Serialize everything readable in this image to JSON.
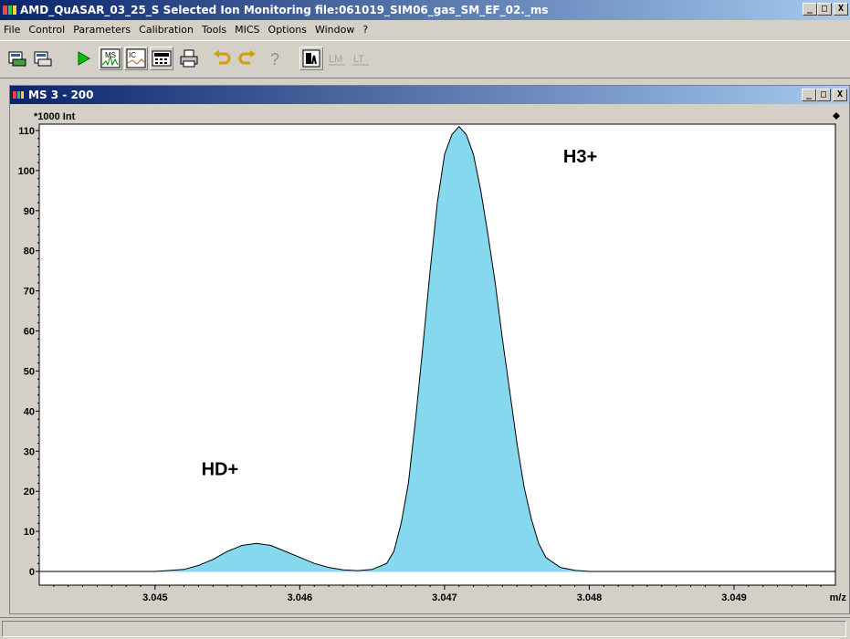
{
  "app": {
    "title": "AMD_QuASAR_03_25_S  Selected Ion Monitoring  file:061019_SIM06_gas_SM_EF_02._ms"
  },
  "window_buttons": {
    "minimize": "_",
    "maximize": "□",
    "close": "X"
  },
  "menu": [
    "File",
    "Control",
    "Parameters",
    "Calibration",
    "Tools",
    "MICS",
    "Options",
    "Window",
    "?"
  ],
  "toolbar": {
    "icons": [
      "open-file-icon",
      "save-file-icon",
      "run-icon",
      "ms-spectrum-icon",
      "ion-chromatogram-icon",
      "calculator-icon",
      "print-icon",
      "undo-icon",
      "redo-icon",
      "help-icon",
      "zoom-icon",
      "lm-icon",
      "lt-icon"
    ],
    "ms_label": "MS",
    "ic_label": "IC",
    "lm_label": "LM",
    "lt_label": "LT"
  },
  "child_window": {
    "title": "MS  3 - 200"
  },
  "chart_data": {
    "type": "area",
    "ylabel": "*1000 Int",
    "xlabel": "m/z",
    "xlim": [
      3.0442,
      3.0497
    ],
    "ylim": [
      0,
      110
    ],
    "x_ticks": [
      "3.045",
      "3.046",
      "3.047",
      "3.048",
      "3.049"
    ],
    "y_ticks": [
      "0",
      "10",
      "20",
      "30",
      "40",
      "50",
      "60",
      "70",
      "80",
      "90",
      "100",
      "110"
    ],
    "x": [
      3.0442,
      3.045,
      3.0452,
      3.0453,
      3.0454,
      3.0455,
      3.0456,
      3.0457,
      3.0458,
      3.0459,
      3.046,
      3.0461,
      3.0462,
      3.0463,
      3.0464,
      3.0465,
      3.0466,
      3.04665,
      3.0467,
      3.04675,
      3.0468,
      3.04685,
      3.0469,
      3.04695,
      3.047,
      3.04705,
      3.0471,
      3.04715,
      3.0472,
      3.04725,
      3.0473,
      3.04735,
      3.0474,
      3.04745,
      3.0475,
      3.04755,
      3.0476,
      3.04765,
      3.0477,
      3.0478,
      3.0479,
      3.048,
      3.0497
    ],
    "y": [
      0,
      0,
      0.5,
      1.5,
      3.0,
      5.0,
      6.5,
      7.0,
      6.5,
      5.0,
      3.5,
      2.0,
      1.0,
      0.4,
      0.2,
      0.5,
      2.0,
      5.0,
      12.0,
      22.0,
      38.0,
      56.0,
      75.0,
      92.0,
      104.0,
      109.0,
      111.0,
      109.0,
      104.0,
      95.0,
      84.0,
      72.0,
      58.0,
      45.0,
      32.0,
      21.0,
      13.0,
      7.0,
      3.5,
      1.0,
      0.3,
      0,
      0
    ],
    "annotations": [
      {
        "text": "H3+",
        "x": 3.04782,
        "y": 102
      },
      {
        "text": "HD+",
        "x": 3.04532,
        "y": 24
      }
    ]
  }
}
